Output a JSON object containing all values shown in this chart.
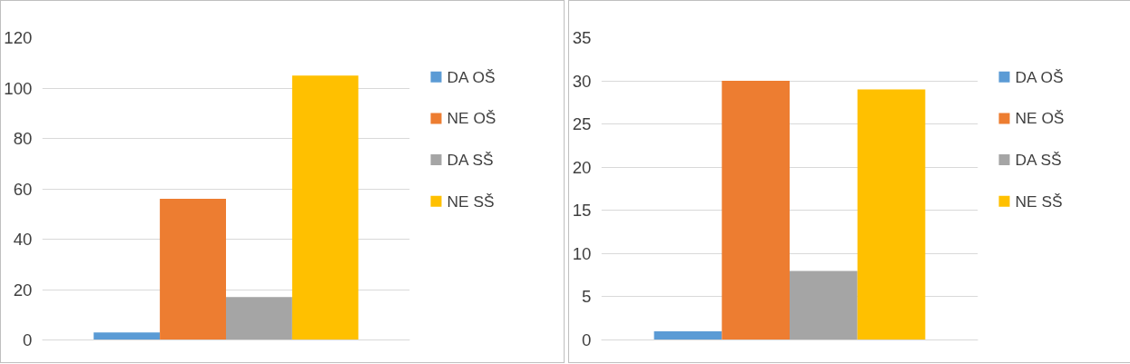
{
  "chart_data": [
    {
      "type": "bar",
      "categories": [
        null
      ],
      "ylim": [
        0,
        120
      ],
      "yticks": [
        0,
        20,
        40,
        60,
        80,
        100,
        120
      ],
      "grid": "y",
      "legend": "right",
      "series": [
        {
          "name": "DA OŠ",
          "color": "#5b9bd5",
          "values": [
            3
          ]
        },
        {
          "name": "NE OŠ",
          "color": "#ed7d31",
          "values": [
            56
          ]
        },
        {
          "name": "DA SŠ",
          "color": "#a5a5a5",
          "values": [
            17
          ]
        },
        {
          "name": "NE SŠ",
          "color": "#ffc000",
          "values": [
            105
          ]
        }
      ]
    },
    {
      "type": "bar",
      "categories": [
        null
      ],
      "ylim": [
        0,
        35
      ],
      "yticks": [
        0,
        5,
        10,
        15,
        20,
        25,
        30,
        35
      ],
      "grid": "y",
      "legend": "right",
      "series": [
        {
          "name": "DA OŠ",
          "color": "#5b9bd5",
          "values": [
            1
          ]
        },
        {
          "name": "NE OŠ",
          "color": "#ed7d31",
          "values": [
            30
          ]
        },
        {
          "name": "DA SŠ",
          "color": "#a5a5a5",
          "values": [
            8
          ]
        },
        {
          "name": "NE SŠ",
          "color": "#ffc000",
          "values": [
            29
          ]
        }
      ]
    }
  ]
}
